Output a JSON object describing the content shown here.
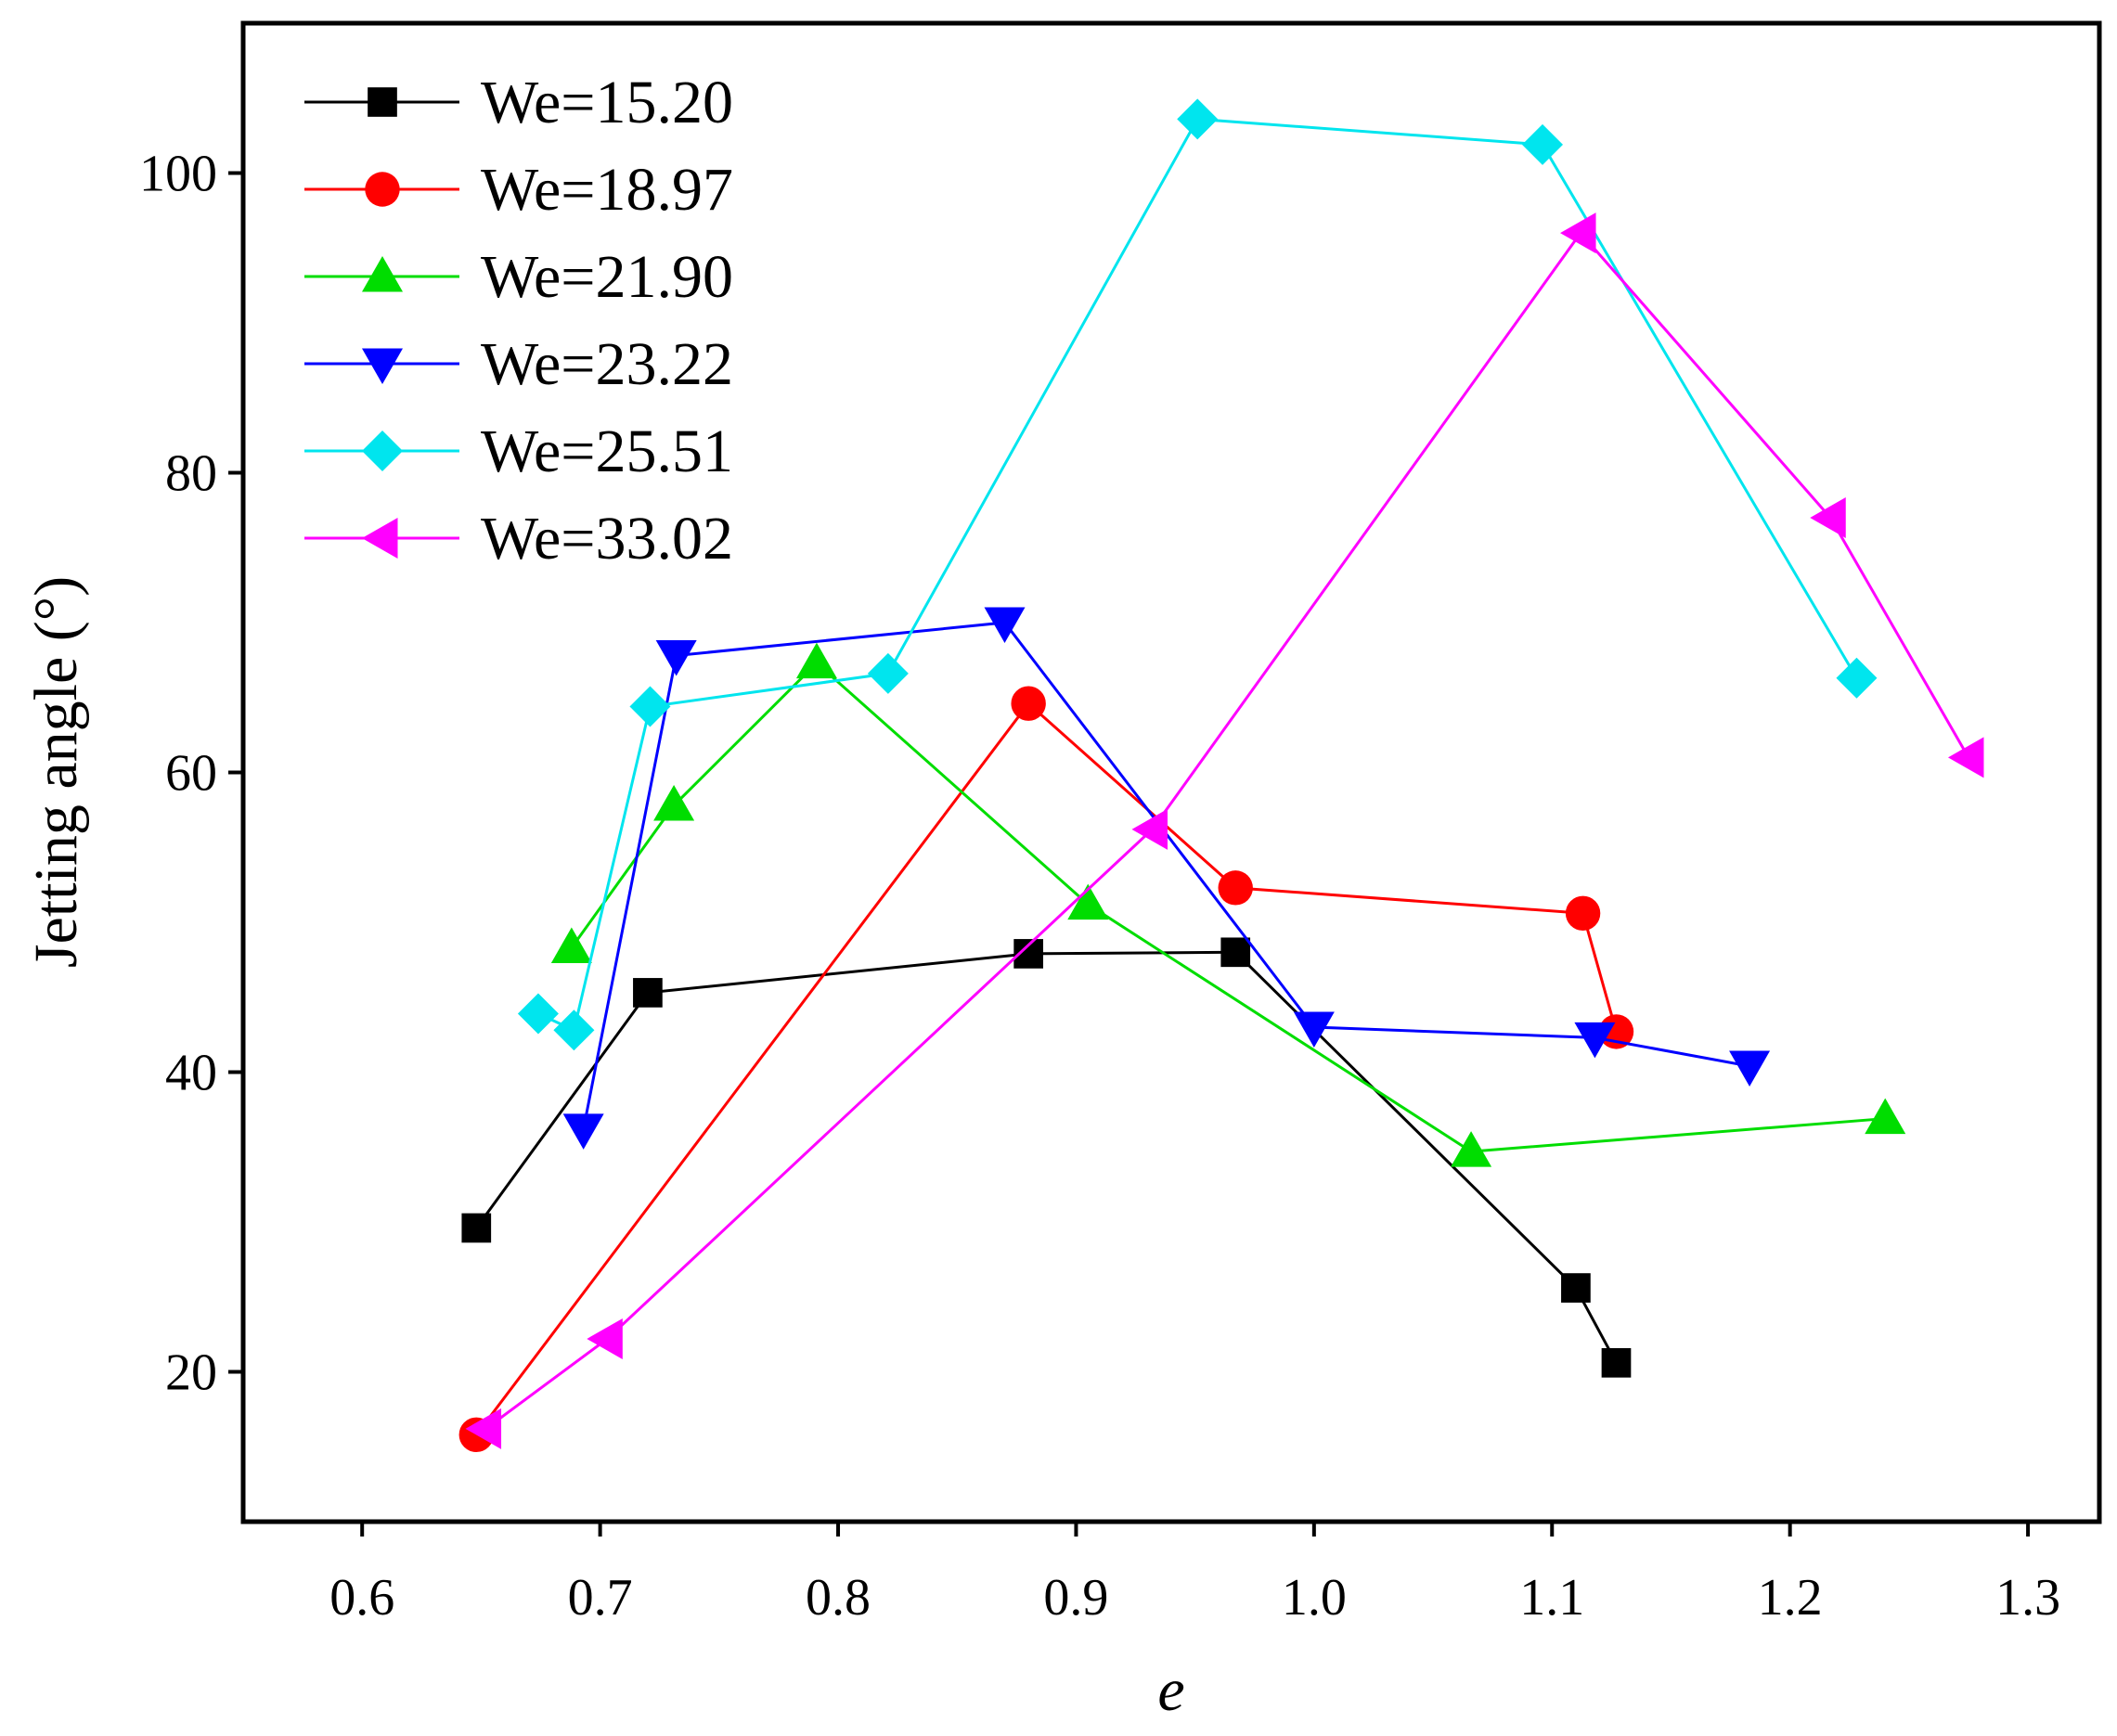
{
  "chart_data": {
    "type": "line",
    "title": "",
    "xlabel": "e",
    "ylabel": "Jetting angle (°)",
    "xlim": [
      0.55,
      1.33
    ],
    "ylim": [
      10,
      110
    ],
    "xticks": [
      0.6,
      0.7,
      0.8,
      0.9,
      1.0,
      1.1,
      1.2,
      1.3
    ],
    "yticks": [
      20,
      40,
      60,
      80,
      100
    ],
    "xtick_labels": [
      "0.6",
      "0.7",
      "0.8",
      "0.9",
      "1.0",
      "1.1",
      "1.2",
      "1.3"
    ],
    "ytick_labels": [
      "20",
      "40",
      "60",
      "80",
      "100"
    ],
    "grid": false,
    "legend_position": "top-left",
    "series": [
      {
        "name": "We=15.20",
        "color": "#000000",
        "marker": "square",
        "x": [
          0.648,
          0.72,
          0.88,
          0.967,
          1.11,
          1.127
        ],
        "y": [
          29.6,
          45.3,
          47.9,
          48.0,
          25.6,
          20.6
        ]
      },
      {
        "name": "We=18.97",
        "color": "#ff0000",
        "marker": "circle",
        "x": [
          0.648,
          0.88,
          0.967,
          1.113,
          1.127
        ],
        "y": [
          15.8,
          64.6,
          52.3,
          50.6,
          42.7
        ]
      },
      {
        "name": "We=21.90",
        "color": "#00dd00",
        "marker": "triangle-up",
        "x": [
          0.688,
          0.731,
          0.791,
          0.905,
          1.066,
          1.24
        ],
        "y": [
          48.3,
          57.8,
          67.3,
          51.2,
          34.7,
          36.9
        ]
      },
      {
        "name": "We=23.22",
        "color": "#0000ff",
        "marker": "triangle-down",
        "x": [
          0.693,
          0.732,
          0.87,
          1.0,
          1.118,
          1.183
        ],
        "y": [
          36.2,
          67.8,
          70.0,
          43.0,
          42.3,
          40.4
        ]
      },
      {
        "name": "We=25.51",
        "color": "#00e5ee",
        "marker": "diamond",
        "x": [
          0.674,
          0.689,
          0.721,
          0.821,
          0.951,
          1.096,
          1.228
        ],
        "y": [
          43.9,
          42.8,
          64.4,
          66.6,
          103.6,
          101.9,
          66.3
        ]
      },
      {
        "name": "We=33.02",
        "color": "#ff00ff",
        "marker": "triangle-left",
        "x": [
          0.652,
          0.703,
          0.932,
          1.112,
          1.217,
          1.275
        ],
        "y": [
          16.2,
          22.2,
          56.2,
          96.0,
          77.0,
          61.0
        ]
      }
    ]
  }
}
